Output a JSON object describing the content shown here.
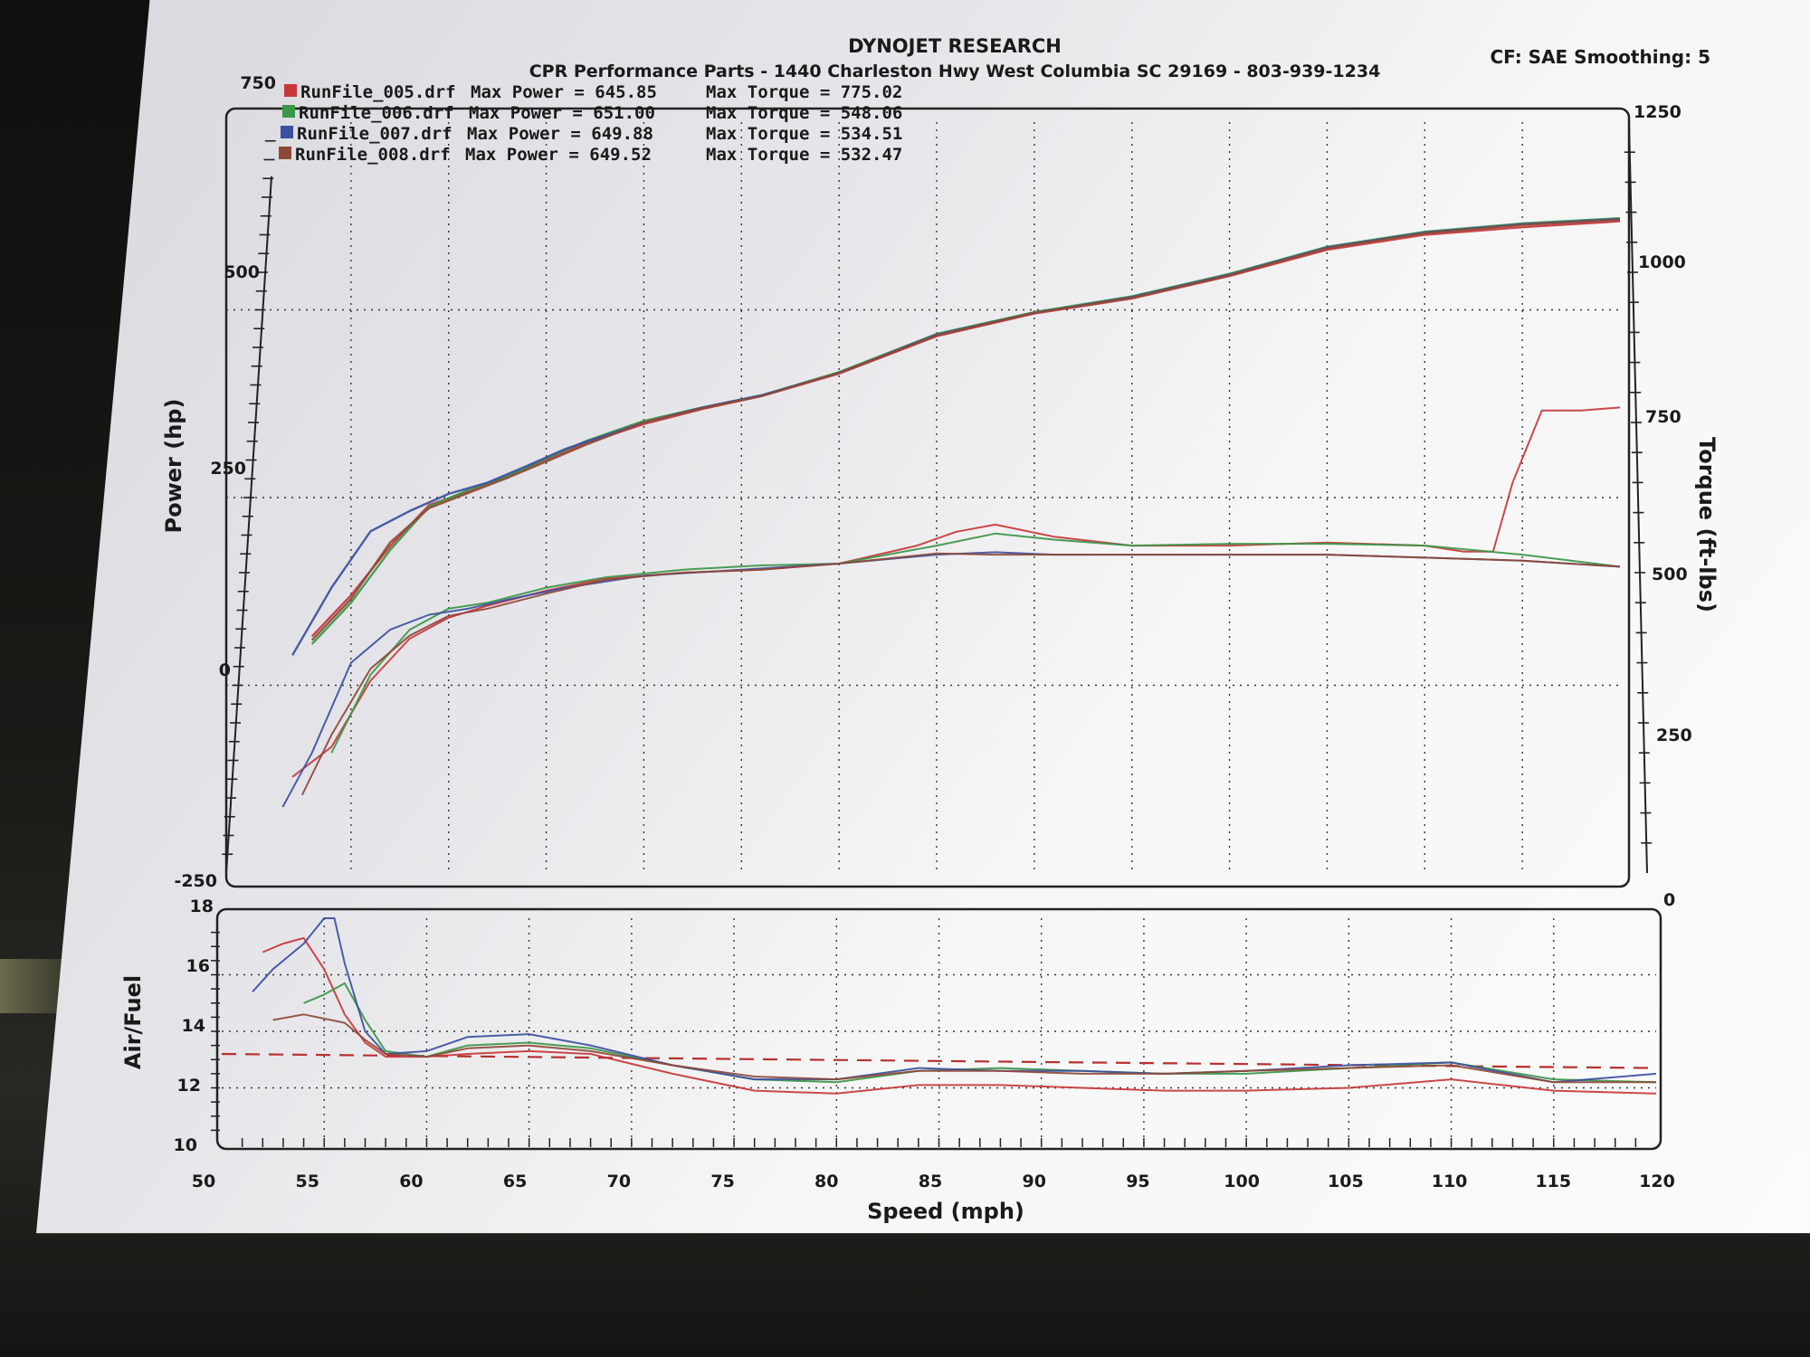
{
  "header": {
    "company": "DYNOJET RESEARCH",
    "shop": "CPR Performance Parts - 1440 Charleston Hwy West Columbia SC 29169 - 803-939-1234",
    "settings": "CF: SAE  Smoothing: 5"
  },
  "legend": [
    {
      "file": "RunFile_005.drf",
      "power_text": "Max Power = 645.85",
      "torque_text": "Max Torque = 775.02",
      "color": "#c8373a"
    },
    {
      "file": "RunFile_006.drf",
      "power_text": "Max Power = 651.00",
      "torque_text": "Max Torque = 548.06",
      "color": "#3a9648"
    },
    {
      "file": "RunFile_007.drf",
      "power_text": "Max Power = 649.88",
      "torque_text": "Max Torque = 534.51",
      "color": "#3d4fa0"
    },
    {
      "file": "RunFile_008.drf",
      "power_text": "Max Power = 649.52",
      "torque_text": "Max Torque = 532.47",
      "color": "#8e4a38"
    }
  ],
  "axes": {
    "power_label": "Power (hp)",
    "torque_label": "Torque (ft-lbs)",
    "af_label": "Air/Fuel",
    "x_label": "Speed (mph)",
    "power_ticks": [
      "750",
      "500",
      "250",
      "0",
      "-250"
    ],
    "torque_ticks": [
      "1250",
      "1000",
      "750",
      "500",
      "250",
      "0"
    ],
    "af_ticks": [
      "18",
      "16",
      "14",
      "12",
      "10"
    ],
    "x_ticks": [
      "50",
      "55",
      "60",
      "65",
      "70",
      "75",
      "80",
      "85",
      "90",
      "95",
      "100",
      "105",
      "110",
      "115",
      "120"
    ]
  },
  "chart_data": [
    {
      "type": "line",
      "title": "DYNOJET RESEARCH",
      "xlabel": "Speed (mph)",
      "ylabel": "Power (hp)",
      "y2label": "Torque (ft-lbs)",
      "xlim": [
        50,
        120
      ],
      "ylim": [
        -250,
        750
      ],
      "y2lim": [
        0,
        1250
      ],
      "grid": true,
      "legend_position": "top-left",
      "series": [
        {
          "name": "RunFile_005.drf",
          "metric": "power",
          "color": "#c8373a",
          "x": [
            53,
            55,
            57,
            59,
            61,
            63,
            65,
            67,
            70,
            73,
            76,
            80,
            85,
            90,
            95,
            100,
            105,
            110,
            115,
            120
          ],
          "y": [
            65,
            120,
            185,
            240,
            258,
            278,
            300,
            322,
            348,
            368,
            385,
            415,
            465,
            495,
            515,
            545,
            580,
            600,
            610,
            618
          ]
        },
        {
          "name": "RunFile_006.drf",
          "metric": "power",
          "color": "#3a9648",
          "x": [
            53,
            55,
            57,
            59,
            61,
            63,
            65,
            67,
            70,
            73,
            76,
            80,
            85,
            90,
            95,
            100,
            105,
            110,
            115,
            120
          ],
          "y": [
            55,
            110,
            180,
            238,
            260,
            278,
            302,
            325,
            352,
            370,
            386,
            417,
            468,
            497,
            518,
            548,
            584,
            604,
            615,
            622
          ]
        },
        {
          "name": "RunFile_007.drf",
          "metric": "power",
          "color": "#3d4fa0",
          "x": [
            52,
            54,
            56,
            58,
            60,
            62,
            64,
            66,
            70,
            73,
            76,
            80,
            85,
            90,
            95,
            100,
            105,
            110,
            115,
            120
          ],
          "y": [
            40,
            130,
            205,
            232,
            255,
            270,
            292,
            315,
            350,
            370,
            386,
            416,
            467,
            496,
            517,
            547,
            583,
            603,
            614,
            621
          ]
        },
        {
          "name": "RunFile_008.drf",
          "metric": "power",
          "color": "#8e4a38",
          "x": [
            53,
            55,
            57,
            59,
            61,
            63,
            65,
            67,
            70,
            73,
            76,
            80,
            85,
            90,
            95,
            100,
            105,
            110,
            115,
            120
          ],
          "y": [
            60,
            115,
            190,
            236,
            256,
            276,
            298,
            320,
            350,
            369,
            385,
            416,
            466,
            496,
            516,
            546,
            582,
            602,
            613,
            620
          ]
        },
        {
          "name": "RunFile_005.drf",
          "metric": "torque",
          "color": "#c8373a",
          "x": [
            52,
            54,
            56,
            58,
            60,
            62,
            65,
            68,
            72,
            76,
            80,
            84,
            86,
            88,
            91,
            95,
            100,
            105,
            110,
            112,
            113.5,
            114.5,
            116,
            118,
            120
          ],
          "y": [
            160,
            210,
            320,
            390,
            425,
            445,
            470,
            490,
            500,
            505,
            515,
            545,
            568,
            580,
            560,
            545,
            545,
            550,
            545,
            535,
            535,
            650,
            770,
            770,
            775
          ]
        },
        {
          "name": "RunFile_006.drf",
          "metric": "torque",
          "color": "#3a9648",
          "x": [
            54,
            56,
            58,
            60,
            62,
            65,
            68,
            72,
            76,
            80,
            85,
            88,
            91,
            95,
            100,
            105,
            110,
            115,
            120
          ],
          "y": [
            200,
            330,
            405,
            440,
            450,
            475,
            492,
            505,
            512,
            515,
            545,
            565,
            555,
            545,
            548,
            548,
            545,
            530,
            510
          ]
        },
        {
          "name": "RunFile_007.drf",
          "metric": "torque",
          "color": "#3d4fa0",
          "x": [
            51.5,
            53,
            55,
            57,
            59,
            61,
            63,
            66,
            70,
            75,
            80,
            85,
            88,
            91,
            95,
            100,
            105,
            110,
            115,
            120
          ],
          "y": [
            110,
            200,
            350,
            405,
            430,
            440,
            455,
            475,
            495,
            505,
            515,
            530,
            534,
            530,
            530,
            530,
            530,
            525,
            520,
            510
          ]
        },
        {
          "name": "RunFile_008.drf",
          "metric": "torque",
          "color": "#8e4a38",
          "x": [
            52.5,
            54,
            56,
            58,
            60,
            62,
            65,
            68,
            72,
            76,
            80,
            85,
            88,
            91,
            95,
            100,
            105,
            110,
            115,
            120
          ],
          "y": [
            130,
            230,
            340,
            395,
            428,
            440,
            465,
            488,
            500,
            505,
            515,
            532,
            530,
            530,
            530,
            530,
            530,
            525,
            520,
            510
          ]
        }
      ]
    },
    {
      "type": "line",
      "xlabel": "Speed (mph)",
      "ylabel": "Air/Fuel",
      "xlim": [
        50,
        120
      ],
      "ylim": [
        10,
        18
      ],
      "grid": true,
      "reference_line": {
        "y_start": 13.2,
        "y_end": 12.7,
        "style": "dashed",
        "color": "#b83030"
      },
      "series": [
        {
          "name": "RunFile_005.drf",
          "color": "#c8373a",
          "x": [
            52,
            53,
            54,
            55,
            56,
            57,
            58,
            60,
            62,
            65,
            68,
            72,
            76,
            80,
            84,
            88,
            92,
            96,
            100,
            105,
            110,
            115,
            120
          ],
          "y": [
            16.8,
            17.1,
            17.3,
            16.2,
            14.6,
            13.6,
            13.1,
            13.1,
            13.2,
            13.3,
            13.2,
            12.5,
            11.9,
            11.8,
            12.1,
            12.1,
            12.0,
            11.9,
            11.9,
            12.0,
            12.3,
            11.9,
            11.8
          ]
        },
        {
          "name": "RunFile_006.drf",
          "color": "#3a9648",
          "x": [
            54,
            55,
            56,
            57,
            58,
            60,
            62,
            65,
            68,
            72,
            76,
            80,
            84,
            88,
            92,
            96,
            100,
            105,
            110,
            115,
            120
          ],
          "y": [
            15.0,
            15.3,
            15.7,
            14.4,
            13.3,
            13.1,
            13.5,
            13.6,
            13.4,
            12.8,
            12.3,
            12.2,
            12.6,
            12.7,
            12.6,
            12.5,
            12.5,
            12.7,
            12.9,
            12.3,
            12.2
          ]
        },
        {
          "name": "RunFile_007.drf",
          "color": "#3d4fa0",
          "x": [
            51.5,
            52.5,
            54,
            55,
            55.5,
            56,
            57,
            58,
            60,
            62,
            65,
            68,
            72,
            76,
            80,
            84,
            88,
            92,
            96,
            100,
            105,
            110,
            115,
            120
          ],
          "y": [
            15.4,
            16.2,
            17.1,
            18.0,
            18.0,
            16.4,
            14.0,
            13.2,
            13.3,
            13.8,
            13.9,
            13.5,
            12.8,
            12.3,
            12.3,
            12.7,
            12.6,
            12.6,
            12.5,
            12.6,
            12.8,
            12.9,
            12.2,
            12.5
          ]
        },
        {
          "name": "RunFile_008.drf",
          "color": "#8e4a38",
          "x": [
            52.5,
            54,
            56,
            57,
            58,
            60,
            62,
            65,
            68,
            72,
            76,
            80,
            84,
            88,
            92,
            96,
            100,
            105,
            110,
            115,
            120
          ],
          "y": [
            14.4,
            14.6,
            14.3,
            13.7,
            13.2,
            13.1,
            13.4,
            13.5,
            13.3,
            12.8,
            12.4,
            12.3,
            12.6,
            12.6,
            12.5,
            12.5,
            12.6,
            12.7,
            12.8,
            12.2,
            12.2
          ]
        }
      ]
    }
  ]
}
